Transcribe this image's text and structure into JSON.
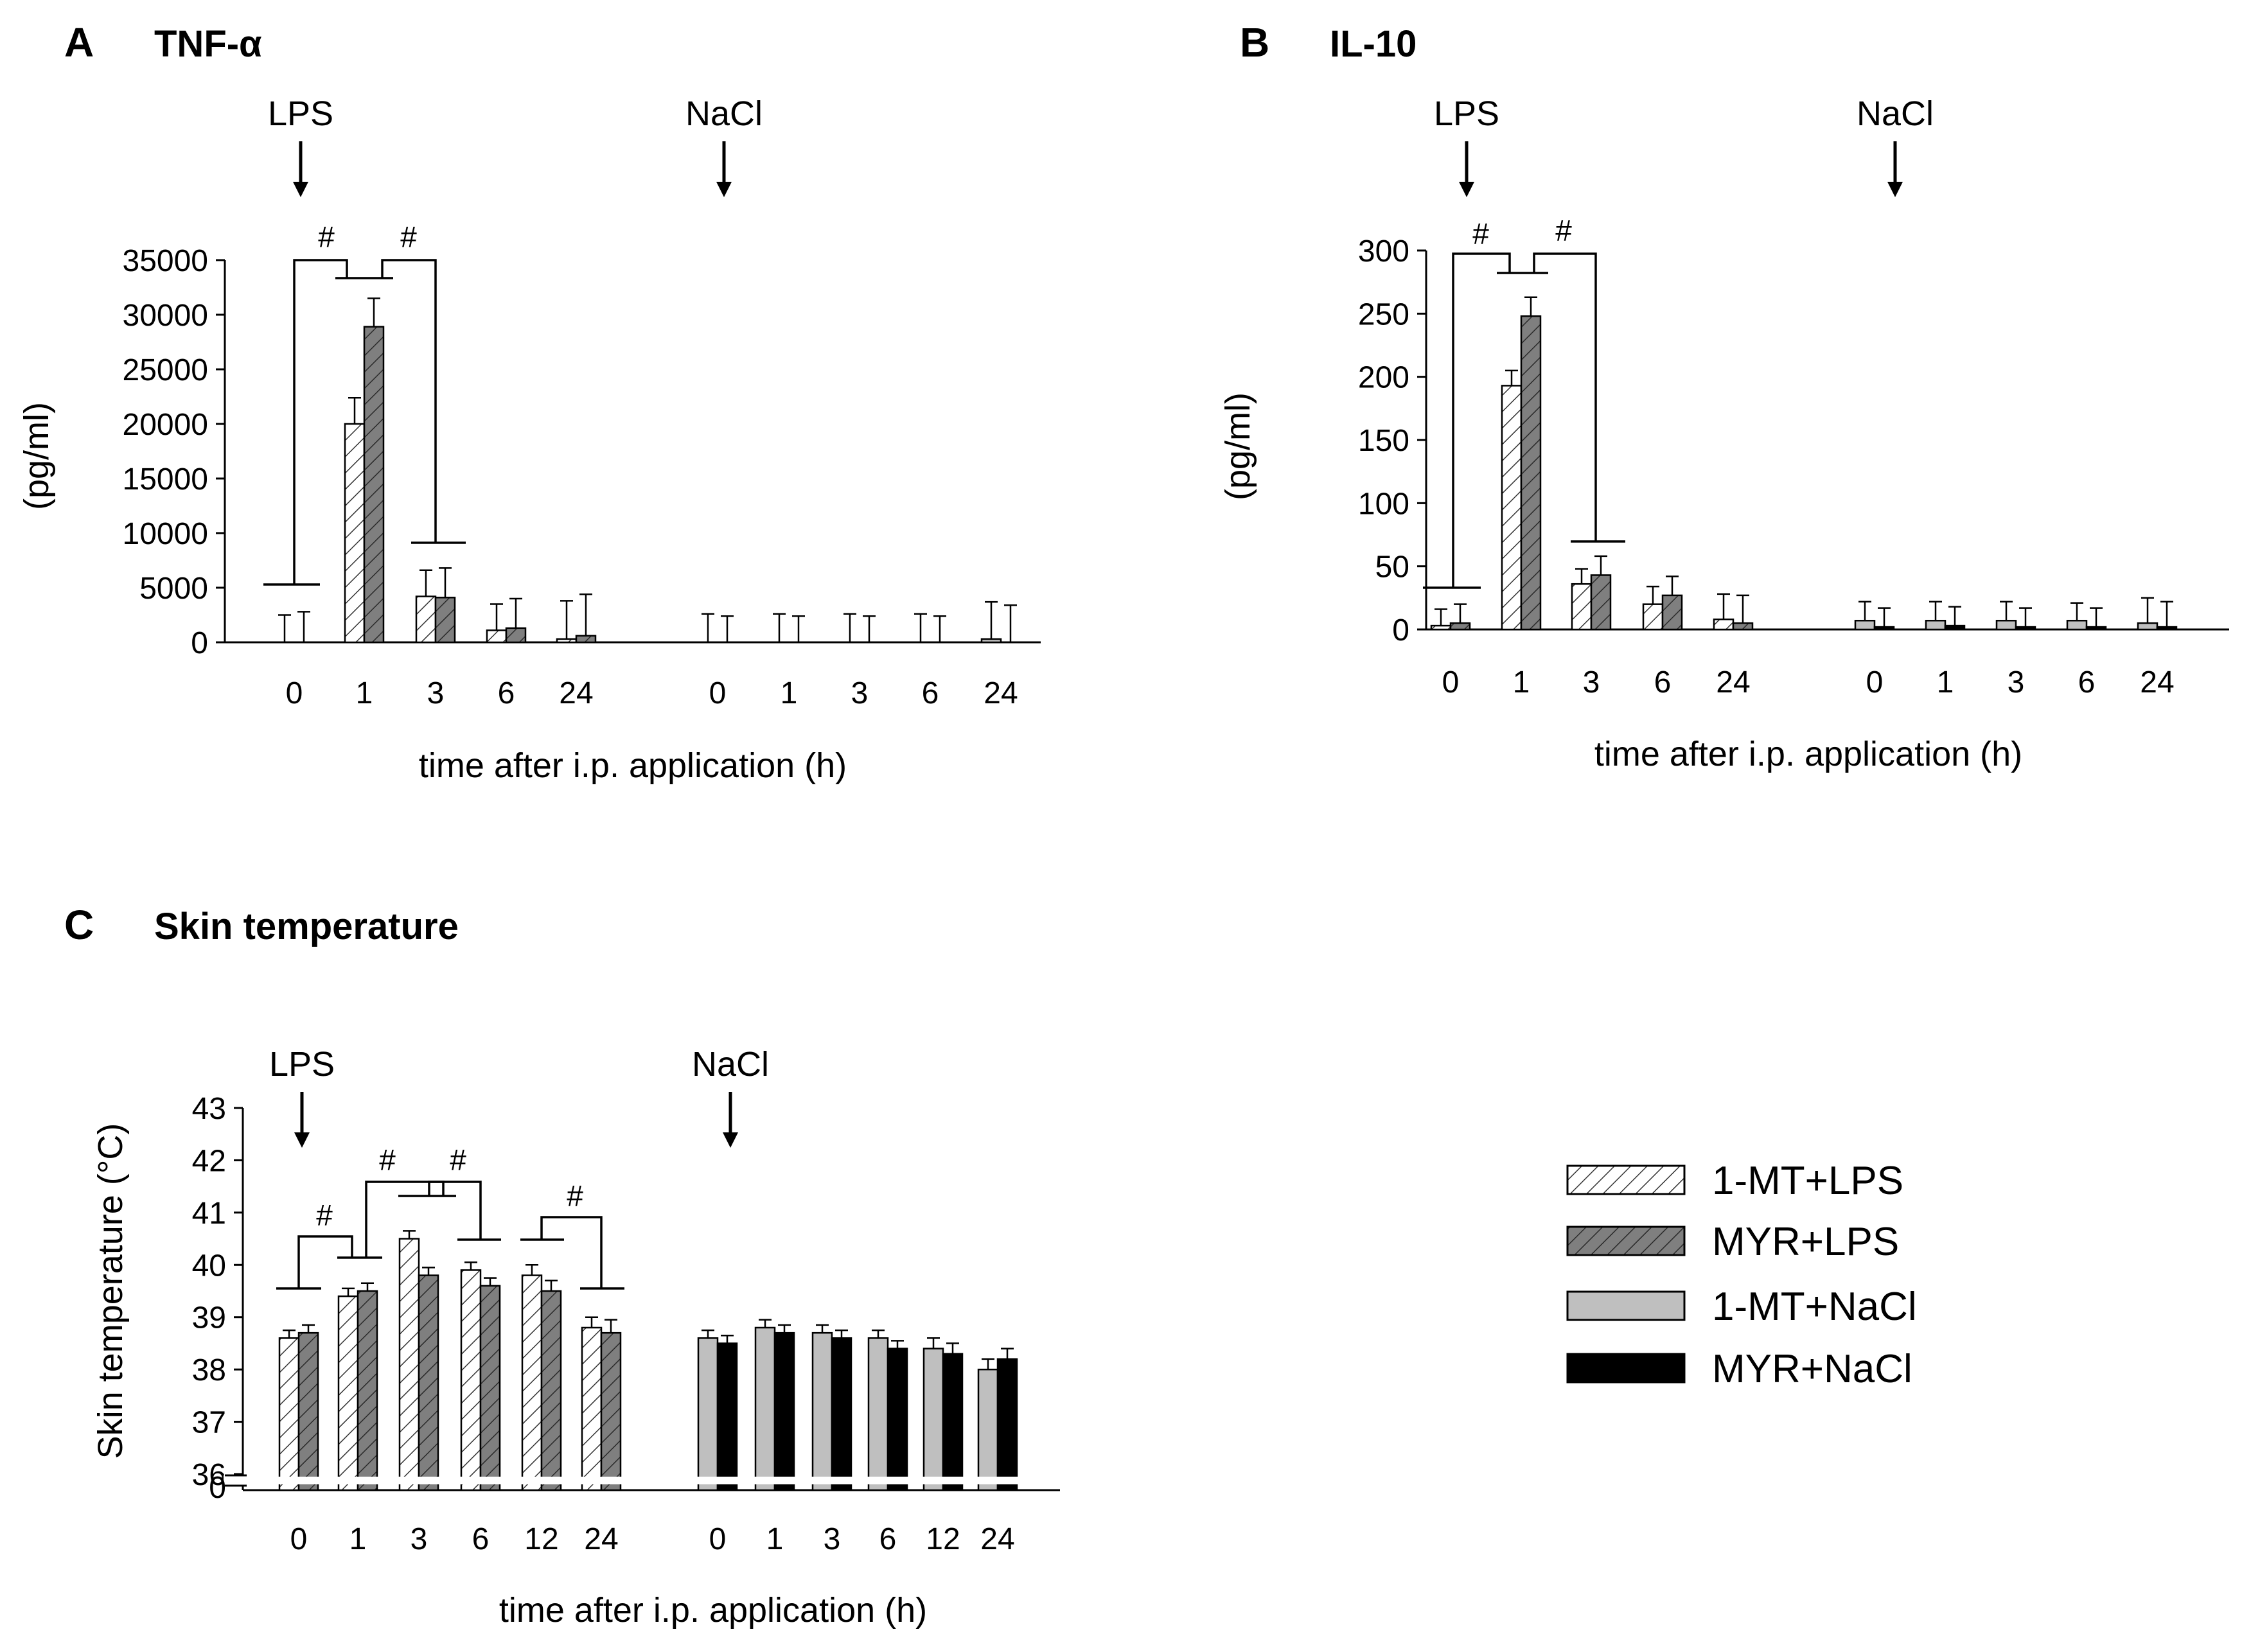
{
  "panels": {
    "A": {
      "letter": "A",
      "title": "TNF-α"
    },
    "B": {
      "letter": "B",
      "title": "IL-10"
    },
    "C": {
      "letter": "C",
      "title": "Skin temperature"
    }
  },
  "markers": {
    "lps": "LPS",
    "nacl": "NaCl",
    "sig": "#"
  },
  "legend": [
    {
      "label": "1-MT+LPS",
      "fill": "#ffffff",
      "hatch": true,
      "color": "#ffffff"
    },
    {
      "label": "MYR+LPS",
      "fill": "#7f7f7f",
      "hatch": true,
      "color": "#7f7f7f"
    },
    {
      "label": "1-MT+NaCl",
      "fill": "#bfbfbf",
      "hatch": false,
      "color": "#bfbfbf"
    },
    {
      "label": "MYR+NaCl",
      "fill": "#000000",
      "hatch": false,
      "color": "#000000"
    }
  ],
  "chart_data": [
    {
      "panel": "A",
      "type": "bar",
      "title": "TNF-α",
      "xlabel": "time after i.p. application (h)",
      "ylabel": "(pg/ml)",
      "ylim": [
        0,
        35000
      ],
      "yticks": [
        "0",
        "5000",
        "10000",
        "15000",
        "20000",
        "25000",
        "30000",
        "35000"
      ],
      "groups": [
        {
          "name": "LPS",
          "categories": [
            "0",
            "1",
            "3",
            "6",
            "24"
          ],
          "series": [
            {
              "name": "1-MT+LPS",
              "values": [
                0,
                20000,
                4200,
                1100,
                300
              ],
              "errors": [
                2500,
                2400,
                2400,
                2400,
                3500
              ]
            },
            {
              "name": "MYR+LPS",
              "values": [
                0,
                28900,
                4100,
                1300,
                600
              ],
              "errors": [
                2800,
                2600,
                2700,
                2700,
                3800
              ]
            }
          ]
        },
        {
          "name": "NaCl",
          "categories": [
            "0",
            "1",
            "3",
            "6",
            "24"
          ],
          "series": [
            {
              "name": "1-MT+NaCl",
              "values": [
                0,
                0,
                0,
                0,
                300
              ],
              "errors": [
                2600,
                2600,
                2600,
                2600,
                3400
              ]
            },
            {
              "name": "MYR+NaCl",
              "values": [
                0,
                0,
                0,
                0,
                0
              ],
              "errors": [
                2400,
                2400,
                2400,
                2400,
                3400
              ]
            }
          ]
        }
      ],
      "significance": [
        "#",
        "#"
      ]
    },
    {
      "panel": "B",
      "type": "bar",
      "title": "IL-10",
      "xlabel": "time after i.p. application (h)",
      "ylabel": "(pg/ml)",
      "ylim": [
        0,
        300
      ],
      "yticks": [
        "0",
        "50",
        "100",
        "150",
        "200",
        "250",
        "300"
      ],
      "groups": [
        {
          "name": "LPS",
          "categories": [
            "0",
            "1",
            "3",
            "6",
            "24"
          ],
          "series": [
            {
              "name": "1-MT+LPS",
              "values": [
                3,
                193,
                36,
                20,
                8
              ],
              "errors": [
                13,
                12,
                12,
                14,
                20
              ]
            },
            {
              "name": "MYR+LPS",
              "values": [
                5,
                248,
                43,
                27,
                5
              ],
              "errors": [
                15,
                15,
                15,
                15,
                22
              ]
            }
          ]
        },
        {
          "name": "NaCl",
          "categories": [
            "0",
            "1",
            "3",
            "6",
            "24"
          ],
          "series": [
            {
              "name": "1-MT+NaCl",
              "values": [
                7,
                7,
                7,
                7,
                5
              ],
              "errors": [
                15,
                15,
                15,
                14,
                20
              ]
            },
            {
              "name": "MYR+NaCl",
              "values": [
                2,
                3,
                2,
                2,
                2
              ],
              "errors": [
                15,
                15,
                15,
                15,
                20
              ]
            }
          ]
        }
      ],
      "significance": [
        "#",
        "#"
      ]
    },
    {
      "panel": "C",
      "type": "bar",
      "title": "Skin temperature",
      "xlabel": "time after i.p. application (h)",
      "ylabel": "Skin temperature (°C)",
      "ylim": [
        36,
        43
      ],
      "yticks": [
        "36",
        "37",
        "38",
        "39",
        "40",
        "41",
        "42",
        "43"
      ],
      "axis_break_label": "0",
      "groups": [
        {
          "name": "LPS",
          "categories": [
            "0",
            "1",
            "3",
            "6",
            "12",
            "24"
          ],
          "series": [
            {
              "name": "1-MT+LPS",
              "values": [
                38.6,
                39.4,
                40.5,
                39.9,
                39.8,
                38.8
              ],
              "errors": [
                0.15,
                0.15,
                0.15,
                0.15,
                0.2,
                0.2
              ]
            },
            {
              "name": "MYR+LPS",
              "values": [
                38.7,
                39.5,
                39.8,
                39.6,
                39.5,
                38.7
              ],
              "errors": [
                0.15,
                0.15,
                0.15,
                0.15,
                0.2,
                0.25
              ]
            }
          ]
        },
        {
          "name": "NaCl",
          "categories": [
            "0",
            "1",
            "3",
            "6",
            "12",
            "24"
          ],
          "series": [
            {
              "name": "1-MT+NaCl",
              "values": [
                38.6,
                38.8,
                38.7,
                38.6,
                38.4,
                38.0
              ],
              "errors": [
                0.15,
                0.15,
                0.15,
                0.15,
                0.2,
                0.2
              ]
            },
            {
              "name": "MYR+NaCl",
              "values": [
                38.5,
                38.7,
                38.6,
                38.4,
                38.3,
                38.2
              ],
              "errors": [
                0.15,
                0.15,
                0.15,
                0.15,
                0.2,
                0.2
              ]
            }
          ]
        }
      ],
      "significance": [
        "#",
        "#",
        "#",
        "#"
      ]
    }
  ]
}
